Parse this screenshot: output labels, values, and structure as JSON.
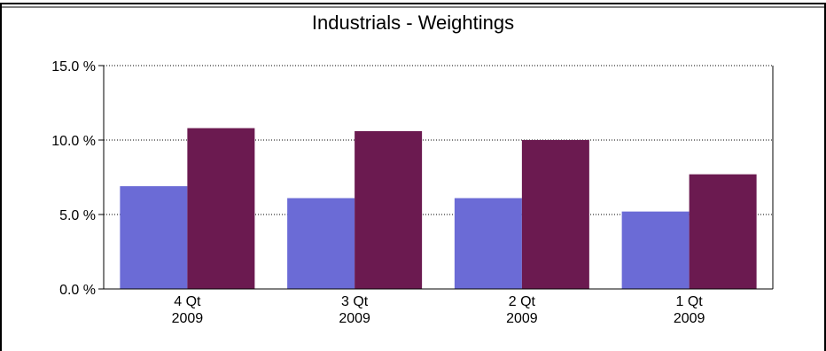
{
  "chart_data": {
    "type": "bar",
    "title": "Industrials  -  Weightings",
    "categories": [
      "4 Qt|2009",
      "3 Qt|2009",
      "2 Qt|2009",
      "1 Qt|2009"
    ],
    "category_lines": [
      [
        "4 Qt",
        "2009"
      ],
      [
        "3 Qt",
        "2009"
      ],
      [
        "2 Qt",
        "2009"
      ],
      [
        "1 Qt",
        "2009"
      ]
    ],
    "series": [
      {
        "values": [
          6.9,
          6.1,
          6.1,
          5.2
        ],
        "color": "#6b6bd6"
      },
      {
        "values": [
          10.8,
          10.6,
          10.0,
          7.7
        ],
        "color": "#6b1a50"
      }
    ],
    "ylim": [
      0,
      15
    ],
    "yticks": [
      0,
      5,
      10,
      15
    ],
    "ytick_labels": [
      "0.0 %",
      "5.0 %",
      "10.0 %",
      "15.0 %"
    ],
    "grid": "horizontal-dotted",
    "legend": "none"
  }
}
